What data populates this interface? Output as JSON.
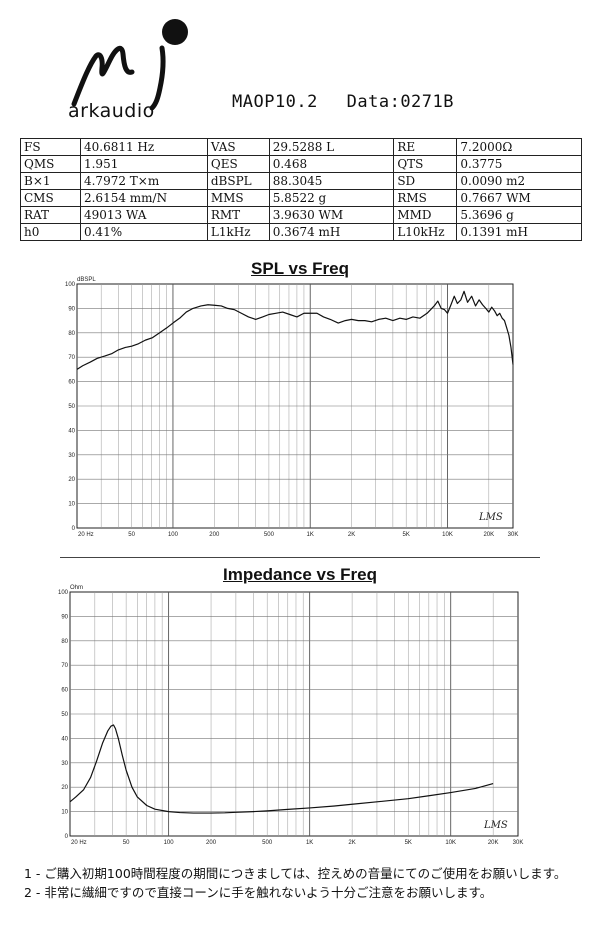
{
  "header": {
    "logo_text": "arkaudio",
    "model": "MAOP10.2",
    "data_label": "Data:0271B"
  },
  "params": [
    [
      {
        "name": "FS",
        "value": "40.6811 Hz"
      },
      {
        "name": "VAS",
        "value": "29.5288 L"
      },
      {
        "name": "RE",
        "value": "7.2000Ω"
      }
    ],
    [
      {
        "name": "QMS",
        "value": "1.951"
      },
      {
        "name": "QES",
        "value": "0.468"
      },
      {
        "name": "QTS",
        "value": "0.3775"
      }
    ],
    [
      {
        "name": "B×1",
        "value": "4.7972 T×m"
      },
      {
        "name": "dBSPL",
        "value": "88.3045"
      },
      {
        "name": "SD",
        "value": "0.0090 m2"
      }
    ],
    [
      {
        "name": "CMS",
        "value": "2.6154 mm/N"
      },
      {
        "name": "MMS",
        "value": "5.8522 g"
      },
      {
        "name": "RMS",
        "value": "0.7667 WM"
      }
    ],
    [
      {
        "name": "RAT",
        "value": "49013 WA"
      },
      {
        "name": "RMT",
        "value": "3.9630 WM"
      },
      {
        "name": "MMD",
        "value": "5.3696 g"
      }
    ],
    [
      {
        "name": "h0",
        "value": "0.41%"
      },
      {
        "name": "L1kHz",
        "value": "0.3674 mH"
      },
      {
        "name": "L10kHz",
        "value": "0.1391 mH"
      }
    ]
  ],
  "chart_data": [
    {
      "type": "line",
      "title": "SPL vs Freq",
      "ylabel": "dBSPL",
      "xscale": "log",
      "xlim": [
        20,
        30000
      ],
      "ylim": [
        0,
        100
      ],
      "x_tick_labels": [
        {
          "value": 20,
          "label": "20 Hz"
        },
        {
          "value": 50,
          "label": "50"
        },
        {
          "value": 100,
          "label": "100"
        },
        {
          "value": 200,
          "label": "200"
        },
        {
          "value": 500,
          "label": "500"
        },
        {
          "value": 1000,
          "label": "1K"
        },
        {
          "value": 2000,
          "label": "2K"
        },
        {
          "value": 5000,
          "label": "5K"
        },
        {
          "value": 10000,
          "label": "10K"
        },
        {
          "value": 20000,
          "label": "20K"
        },
        {
          "value": 30000,
          "label": "30K"
        }
      ],
      "y_tick_labels": [
        "0",
        "10",
        "20",
        "30",
        "40",
        "50",
        "60",
        "70",
        "80",
        "90",
        "100"
      ],
      "watermark": "LMS",
      "grid": true,
      "series": [
        {
          "x": [
            20,
            22,
            25,
            28,
            32,
            36,
            40,
            45,
            50,
            56,
            63,
            71,
            80,
            90,
            100,
            112,
            125,
            140,
            160,
            180,
            200,
            225,
            250,
            280,
            315,
            355,
            400,
            450,
            500,
            560,
            630,
            710,
            800,
            900,
            1000,
            1120,
            1250,
            1400,
            1600,
            1800,
            2000,
            2240,
            2500,
            2800,
            3150,
            3550,
            4000,
            4500,
            5000,
            5600,
            6300,
            7100,
            8000,
            8500,
            9000,
            9500,
            10000,
            10600,
            11200,
            11800,
            12500,
            13200,
            14000,
            15000,
            16000,
            17000,
            18000,
            19000,
            20000,
            21000,
            22000,
            23000,
            24000,
            25000,
            26000,
            27000,
            28000,
            29000,
            30000
          ],
          "y": [
            65,
            66.5,
            68,
            69.5,
            70.5,
            71.5,
            73,
            74,
            74.5,
            75.5,
            77,
            78,
            80,
            82,
            84,
            86,
            88.5,
            90,
            91,
            91.5,
            91.3,
            91,
            90,
            89.5,
            88,
            86.5,
            85.5,
            86.5,
            87.5,
            88,
            88.5,
            87.5,
            86.5,
            88,
            88,
            88,
            86.5,
            85.5,
            84,
            85,
            85.5,
            85,
            85,
            84.5,
            85.5,
            86,
            85,
            86,
            85.5,
            86.5,
            86,
            88,
            91,
            93,
            90,
            89.5,
            88,
            91.5,
            95,
            92,
            93.5,
            97,
            92.5,
            95,
            91,
            93.5,
            91.5,
            90,
            88.5,
            90.5,
            89,
            87,
            88,
            86,
            85,
            82,
            79,
            74,
            67
          ]
        }
      ]
    },
    {
      "type": "line",
      "title": "Impedance vs Freq",
      "ylabel": "Ohm",
      "xscale": "log",
      "xlim": [
        20,
        30000
      ],
      "ylim": [
        0,
        100
      ],
      "x_tick_labels": [
        {
          "value": 20,
          "label": "20 Hz"
        },
        {
          "value": 50,
          "label": "50"
        },
        {
          "value": 100,
          "label": "100"
        },
        {
          "value": 200,
          "label": "200"
        },
        {
          "value": 500,
          "label": "500"
        },
        {
          "value": 1000,
          "label": "1K"
        },
        {
          "value": 2000,
          "label": "2K"
        },
        {
          "value": 5000,
          "label": "5K"
        },
        {
          "value": 10000,
          "label": "10K"
        },
        {
          "value": 20000,
          "label": "20K"
        },
        {
          "value": 30000,
          "label": "30K"
        }
      ],
      "y_tick_labels": [
        "0",
        "10",
        "20",
        "30",
        "40",
        "50",
        "60",
        "70",
        "80",
        "90",
        "100"
      ],
      "watermark": "LMS",
      "grid": true,
      "series": [
        {
          "x": [
            20,
            22,
            25,
            28,
            31,
            34,
            37,
            39,
            40.7,
            42,
            44,
            47,
            50,
            55,
            60,
            70,
            80,
            100,
            120,
            150,
            200,
            250,
            300,
            400,
            500,
            700,
            1000,
            1500,
            2000,
            3000,
            5000,
            7000,
            10000,
            15000,
            20000
          ],
          "y": [
            14,
            16,
            19,
            24,
            31,
            38,
            43,
            45,
            45.5,
            44,
            40,
            33,
            27,
            20,
            16,
            12.5,
            11,
            10,
            9.6,
            9.4,
            9.4,
            9.5,
            9.7,
            10,
            10.3,
            10.9,
            11.5,
            12.3,
            13,
            14,
            15.3,
            16.5,
            17.8,
            19.5,
            21.5
          ]
        }
      ]
    }
  ],
  "notes": [
    "1 - ご購入初期100時間程度の期間につきましては、控えめの音量にてのご使用をお願いします。",
    "2 - 非常に繊細ですので直接コーンに手を触れないよう十分ご注意をお願いします。"
  ]
}
